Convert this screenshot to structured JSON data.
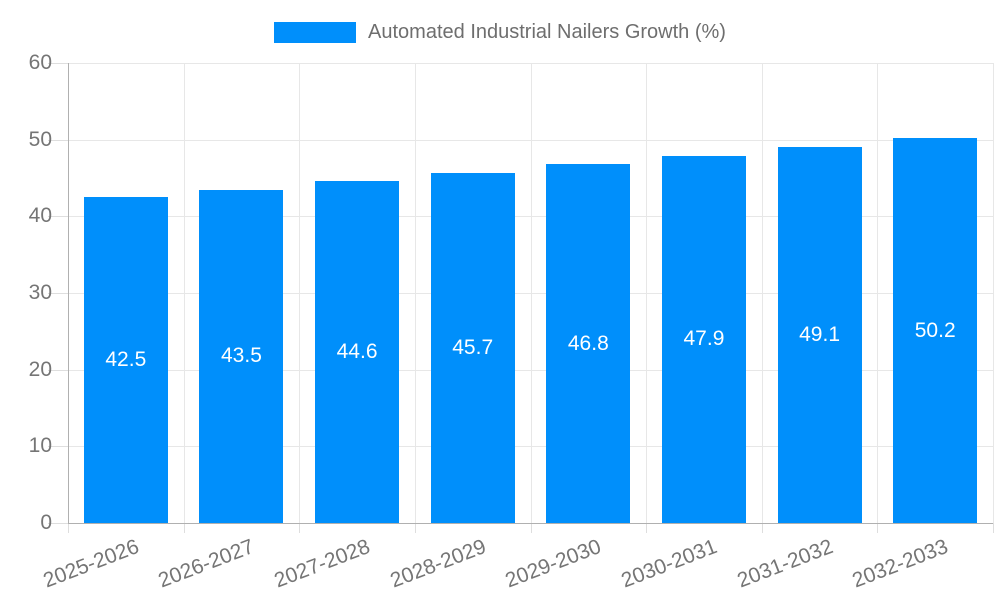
{
  "chart_data": {
    "type": "bar",
    "title": "Automated Industrial Nailers Growth (%)",
    "legend_entries": [
      "Automated Industrial Nailers Growth (%)"
    ],
    "legend_position": "top-center",
    "categories": [
      "2025-2026",
      "2026-2027",
      "2027-2028",
      "2028-2029",
      "2029-2030",
      "2030-2031",
      "2031-2032",
      "2032-2033"
    ],
    "values": [
      42.5,
      43.5,
      44.6,
      45.7,
      46.8,
      47.9,
      49.1,
      50.2
    ],
    "value_labels": [
      "42.5",
      "43.5",
      "44.6",
      "45.7",
      "46.8",
      "47.9",
      "49.1",
      "50.2"
    ],
    "xlabel": "",
    "ylabel": "",
    "ylim": [
      0,
      60
    ],
    "yticks": [
      0,
      10,
      20,
      30,
      40,
      50,
      60
    ],
    "grid": true,
    "colors": {
      "bar": "#008FFB",
      "value_label": "#ffffff",
      "axis_label": "#757575",
      "legend_text": "#6e6e6e",
      "gridline": "#e7e7e7",
      "axis_line": "#b0b0b0",
      "background": "#ffffff"
    }
  }
}
